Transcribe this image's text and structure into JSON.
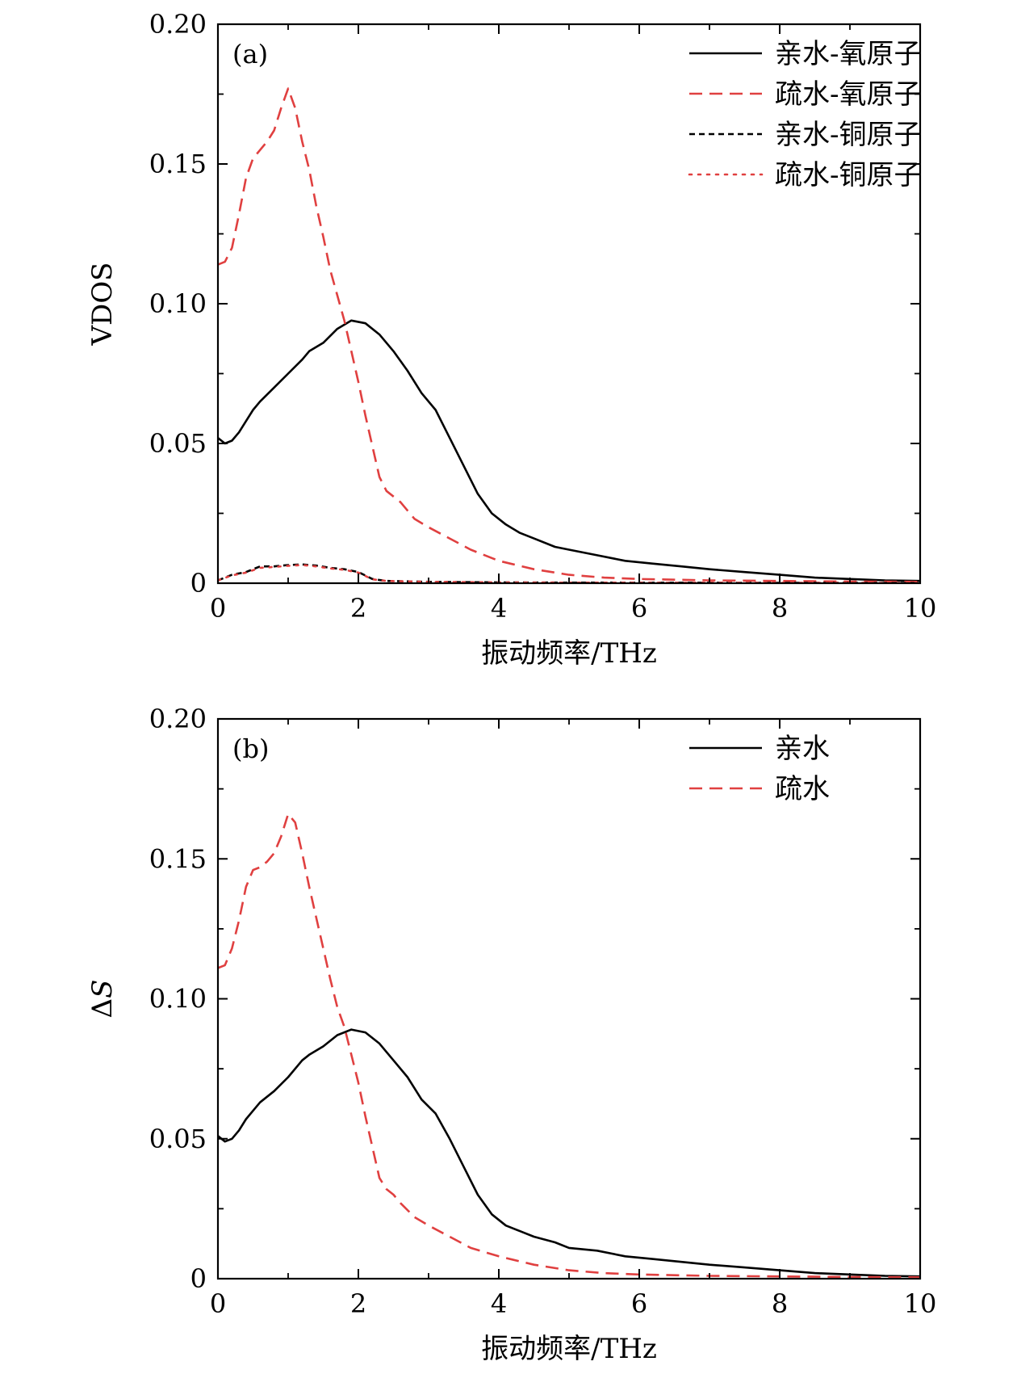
{
  "chart_data": [
    {
      "type": "line",
      "panel_label": "(a)",
      "xlabel": "振动频率/THz",
      "ylabel": "VDOS",
      "xlim": [
        0,
        10
      ],
      "ylim": [
        0,
        0.2
      ],
      "xticks": [
        0,
        2,
        4,
        6,
        8,
        10
      ],
      "xtick_labels": [
        "0",
        "2",
        "4",
        "6",
        "8",
        "10"
      ],
      "yticks": [
        0,
        0.05,
        0.1,
        0.15,
        0.2
      ],
      "ytick_labels": [
        "0",
        "0.05",
        "0.10",
        "0.15",
        "0.20"
      ],
      "grid": false,
      "legend_position": "top-right",
      "series": [
        {
          "name": "亲水-氧原子",
          "color": "#000000",
          "style": "solid",
          "x": [
            0,
            0.1,
            0.2,
            0.3,
            0.4,
            0.5,
            0.6,
            0.8,
            1.0,
            1.2,
            1.3,
            1.5,
            1.7,
            1.9,
            2.1,
            2.3,
            2.5,
            2.7,
            2.9,
            3.1,
            3.3,
            3.5,
            3.7,
            3.9,
            4.1,
            4.3,
            4.5,
            4.8,
            5.0,
            5.4,
            5.8,
            6.2,
            6.6,
            7.0,
            7.5,
            8.0,
            8.5,
            9.0,
            9.5,
            10.0
          ],
          "y": [
            0.052,
            0.05,
            0.051,
            0.054,
            0.058,
            0.062,
            0.065,
            0.07,
            0.075,
            0.08,
            0.083,
            0.086,
            0.091,
            0.094,
            0.093,
            0.089,
            0.083,
            0.076,
            0.068,
            0.062,
            0.052,
            0.042,
            0.032,
            0.025,
            0.021,
            0.018,
            0.016,
            0.013,
            0.012,
            0.01,
            0.008,
            0.007,
            0.006,
            0.005,
            0.004,
            0.003,
            0.002,
            0.0015,
            0.001,
            0.0008
          ]
        },
        {
          "name": "疏水-氧原子",
          "color": "#e04040",
          "style": "dashed",
          "x": [
            0,
            0.1,
            0.2,
            0.3,
            0.4,
            0.5,
            0.6,
            0.7,
            0.8,
            0.9,
            1.0,
            1.1,
            1.2,
            1.3,
            1.4,
            1.5,
            1.6,
            1.7,
            1.8,
            1.9,
            2.0,
            2.1,
            2.2,
            2.3,
            2.4,
            2.5,
            2.6,
            2.8,
            3.0,
            3.3,
            3.6,
            4.0,
            4.5,
            5.0,
            5.5,
            6.0,
            7.0,
            8.0,
            9.0,
            10.0
          ],
          "y": [
            0.114,
            0.115,
            0.12,
            0.132,
            0.145,
            0.152,
            0.155,
            0.158,
            0.162,
            0.17,
            0.177,
            0.17,
            0.158,
            0.148,
            0.135,
            0.124,
            0.112,
            0.103,
            0.094,
            0.083,
            0.072,
            0.06,
            0.049,
            0.038,
            0.033,
            0.031,
            0.029,
            0.023,
            0.02,
            0.016,
            0.012,
            0.008,
            0.005,
            0.003,
            0.002,
            0.0015,
            0.001,
            0.0008,
            0.0006,
            0.0005
          ]
        },
        {
          "name": "亲水-铜原子",
          "color": "#000000",
          "style": "short-dashed",
          "x": [
            0,
            0.2,
            0.4,
            0.6,
            0.8,
            1.0,
            1.2,
            1.4,
            1.6,
            1.8,
            2.0,
            2.2,
            2.4,
            3.0,
            4.0,
            5.0,
            10.0
          ],
          "y": [
            0.001,
            0.003,
            0.004,
            0.006,
            0.006,
            0.0065,
            0.0067,
            0.0063,
            0.0055,
            0.005,
            0.004,
            0.0015,
            0.0008,
            0.0005,
            0.0003,
            0.0002,
            0.0001
          ]
        },
        {
          "name": "疏水-铜原子",
          "color": "#e04040",
          "style": "dotted",
          "x": [
            0,
            0.2,
            0.4,
            0.6,
            0.8,
            1.0,
            1.2,
            1.4,
            1.6,
            1.8,
            2.0,
            2.2,
            2.4,
            3.0,
            4.0,
            5.0,
            10.0
          ],
          "y": [
            0.001,
            0.0028,
            0.0038,
            0.0055,
            0.0058,
            0.0062,
            0.0065,
            0.006,
            0.0053,
            0.0048,
            0.0038,
            0.0014,
            0.0008,
            0.0005,
            0.0003,
            0.0002,
            0.0001
          ]
        }
      ]
    },
    {
      "type": "line",
      "panel_label": "(b)",
      "xlabel": "振动频率/THz",
      "ylabel": "ΔS",
      "xlim": [
        0,
        10
      ],
      "ylim": [
        0,
        0.2
      ],
      "xticks": [
        0,
        2,
        4,
        6,
        8,
        10
      ],
      "xtick_labels": [
        "0",
        "2",
        "4",
        "6",
        "8",
        "10"
      ],
      "yticks": [
        0,
        0.05,
        0.1,
        0.15,
        0.2
      ],
      "ytick_labels": [
        "0",
        "0.05",
        "0.10",
        "0.15",
        "0.20"
      ],
      "grid": false,
      "legend_position": "top-right",
      "series": [
        {
          "name": "亲水",
          "color": "#000000",
          "style": "solid",
          "x": [
            0,
            0.1,
            0.2,
            0.3,
            0.4,
            0.5,
            0.6,
            0.8,
            1.0,
            1.2,
            1.3,
            1.5,
            1.7,
            1.9,
            2.1,
            2.3,
            2.5,
            2.7,
            2.9,
            3.1,
            3.3,
            3.5,
            3.7,
            3.9,
            4.1,
            4.3,
            4.5,
            4.8,
            5.0,
            5.4,
            5.8,
            6.2,
            6.6,
            7.0,
            7.5,
            8.0,
            8.5,
            9.0,
            9.5,
            10.0
          ],
          "y": [
            0.051,
            0.049,
            0.05,
            0.053,
            0.057,
            0.06,
            0.063,
            0.067,
            0.072,
            0.078,
            0.08,
            0.083,
            0.087,
            0.089,
            0.088,
            0.084,
            0.078,
            0.072,
            0.064,
            0.059,
            0.05,
            0.04,
            0.03,
            0.023,
            0.019,
            0.017,
            0.015,
            0.013,
            0.011,
            0.01,
            0.008,
            0.007,
            0.006,
            0.005,
            0.004,
            0.003,
            0.002,
            0.0015,
            0.001,
            0.0008
          ]
        },
        {
          "name": "疏水",
          "color": "#e04040",
          "style": "dashed",
          "x": [
            0,
            0.1,
            0.2,
            0.3,
            0.4,
            0.5,
            0.6,
            0.7,
            0.8,
            0.9,
            1.0,
            1.1,
            1.2,
            1.3,
            1.4,
            1.5,
            1.6,
            1.7,
            1.8,
            1.9,
            2.0,
            2.1,
            2.2,
            2.3,
            2.4,
            2.5,
            2.6,
            2.8,
            3.0,
            3.3,
            3.6,
            4.0,
            4.5,
            5.0,
            5.5,
            6.0,
            7.0,
            8.0,
            9.0,
            10.0
          ],
          "y": [
            0.111,
            0.112,
            0.118,
            0.128,
            0.14,
            0.146,
            0.147,
            0.149,
            0.152,
            0.158,
            0.166,
            0.163,
            0.152,
            0.14,
            0.129,
            0.118,
            0.107,
            0.097,
            0.09,
            0.08,
            0.07,
            0.058,
            0.047,
            0.036,
            0.032,
            0.03,
            0.027,
            0.022,
            0.019,
            0.015,
            0.011,
            0.008,
            0.005,
            0.003,
            0.002,
            0.0015,
            0.001,
            0.0008,
            0.0006,
            0.0005
          ]
        }
      ]
    }
  ]
}
